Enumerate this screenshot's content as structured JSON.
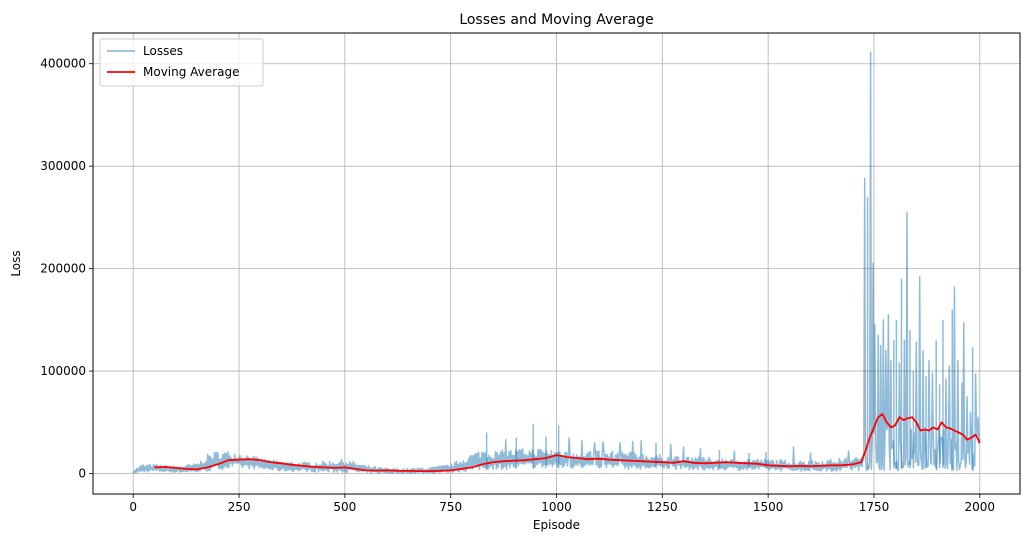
{
  "chart_data": {
    "type": "line",
    "title": "Losses and Moving Average",
    "xlabel": "Episode",
    "ylabel": "Loss",
    "xlim": [
      -95,
      2095
    ],
    "ylim": [
      -20000,
      430000
    ],
    "x_ticks": [
      0,
      250,
      500,
      750,
      1000,
      1250,
      1500,
      1750,
      2000
    ],
    "x_tick_labels": [
      "0",
      "250",
      "500",
      "750",
      "1000",
      "1250",
      "1500",
      "1750",
      "2000"
    ],
    "y_ticks": [
      0,
      100000,
      200000,
      300000,
      400000
    ],
    "y_tick_labels": [
      "0",
      "100000",
      "200000",
      "300000",
      "400000"
    ],
    "grid": true,
    "legend_position": "top-left",
    "series": [
      {
        "name": "Losses",
        "color": "#1f77b4",
        "alpha": 0.5,
        "envelope_x": [
          0,
          20,
          50,
          100,
          150,
          180,
          200,
          230,
          260,
          300,
          350,
          400,
          450,
          500,
          550,
          600,
          650,
          700,
          750,
          800,
          830,
          850,
          900,
          950,
          1000,
          1050,
          1100,
          1150,
          1200,
          1250,
          1300,
          1350,
          1400,
          1450,
          1500,
          1550,
          1600,
          1650,
          1700,
          1725
        ],
        "envelope_hi": [
          3000,
          9000,
          9000,
          7000,
          10000,
          20000,
          22000,
          22000,
          20000,
          15000,
          12000,
          11000,
          12000,
          14000,
          8000,
          5000,
          5000,
          6000,
          9000,
          20000,
          25000,
          22000,
          24000,
          25000,
          24000,
          23000,
          22000,
          22000,
          20000,
          18000,
          17000,
          16000,
          15000,
          15000,
          14000,
          13000,
          13000,
          14000,
          16000,
          18000
        ],
        "envelope_lo": [
          0,
          1000,
          2000,
          1000,
          1000,
          2000,
          3000,
          5000,
          5000,
          4000,
          2000,
          2000,
          1000,
          1000,
          0,
          0,
          0,
          0,
          1000,
          2000,
          3000,
          4000,
          4000,
          5000,
          5000,
          5000,
          5000,
          4000,
          4000,
          4000,
          4000,
          3000,
          3000,
          3000,
          3000,
          2000,
          2000,
          2000,
          3000,
          3000
        ],
        "spikes": [
          [
            835,
            40000
          ],
          [
            880,
            33000
          ],
          [
            905,
            35000
          ],
          [
            945,
            48000
          ],
          [
            975,
            36000
          ],
          [
            1005,
            47000
          ],
          [
            1030,
            35000
          ],
          [
            1060,
            32000
          ],
          [
            1090,
            30000
          ],
          [
            1110,
            31000
          ],
          [
            1150,
            30000
          ],
          [
            1180,
            31000
          ],
          [
            1200,
            32000
          ],
          [
            1235,
            30000
          ],
          [
            1270,
            28000
          ],
          [
            1300,
            26000
          ],
          [
            1340,
            24000
          ],
          [
            1385,
            23000
          ],
          [
            1420,
            22000
          ],
          [
            1455,
            20000
          ],
          [
            1495,
            21000
          ],
          [
            1560,
            26000
          ],
          [
            1600,
            20000
          ],
          [
            1690,
            22000
          ],
          [
            1728,
            288000
          ],
          [
            1735,
            270000
          ],
          [
            1742,
            411000
          ],
          [
            1748,
            205000
          ],
          [
            1752,
            145000
          ],
          [
            1760,
            135000
          ],
          [
            1766,
            125000
          ],
          [
            1772,
            150000
          ],
          [
            1778,
            120000
          ],
          [
            1784,
            155000
          ],
          [
            1790,
            110000
          ],
          [
            1797,
            130000
          ],
          [
            1803,
            150000
          ],
          [
            1810,
            108000
          ],
          [
            1815,
            190000
          ],
          [
            1822,
            130000
          ],
          [
            1828,
            255000
          ],
          [
            1835,
            140000
          ],
          [
            1843,
            100000
          ],
          [
            1850,
            128000
          ],
          [
            1858,
            192000
          ],
          [
            1866,
            120000
          ],
          [
            1873,
            95000
          ],
          [
            1880,
            110000
          ],
          [
            1888,
            98000
          ],
          [
            1897,
            130000
          ],
          [
            1905,
            87000
          ],
          [
            1913,
            150000
          ],
          [
            1920,
            92000
          ],
          [
            1928,
            105000
          ],
          [
            1935,
            160000
          ],
          [
            1940,
            182000
          ],
          [
            1948,
            110000
          ],
          [
            1958,
            88000
          ],
          [
            1962,
            147000
          ],
          [
            1970,
            75000
          ],
          [
            1978,
            60000
          ],
          [
            1983,
            123000
          ],
          [
            1990,
            97000
          ],
          [
            1996,
            55000
          ]
        ]
      },
      {
        "name": "Moving Average",
        "color": "#ff0000",
        "x": [
          50,
          75,
          100,
          125,
          150,
          175,
          200,
          225,
          250,
          275,
          300,
          325,
          350,
          375,
          400,
          425,
          450,
          475,
          500,
          525,
          550,
          575,
          600,
          625,
          650,
          675,
          700,
          725,
          750,
          775,
          800,
          825,
          850,
          875,
          900,
          925,
          950,
          975,
          1000,
          1015,
          1025,
          1050,
          1075,
          1100,
          1125,
          1150,
          1175,
          1200,
          1225,
          1250,
          1275,
          1300,
          1325,
          1350,
          1375,
          1400,
          1425,
          1450,
          1475,
          1500,
          1525,
          1550,
          1575,
          1600,
          1625,
          1650,
          1675,
          1700,
          1720,
          1730,
          1740,
          1750,
          1760,
          1770,
          1780,
          1790,
          1800,
          1810,
          1820,
          1830,
          1840,
          1850,
          1860,
          1870,
          1880,
          1890,
          1900,
          1910,
          1920,
          1930,
          1940,
          1950,
          1960,
          1970,
          1980,
          1990,
          2000
        ],
        "y": [
          6000,
          6500,
          5500,
          4500,
          4000,
          6000,
          9000,
          13000,
          13500,
          14000,
          13000,
          11000,
          10000,
          8500,
          7500,
          6500,
          6000,
          5500,
          6000,
          4500,
          3000,
          2800,
          3000,
          2600,
          2500,
          2400,
          2400,
          2600,
          3000,
          4500,
          6000,
          9000,
          11000,
          12000,
          12500,
          13000,
          14000,
          15000,
          18000,
          17000,
          16000,
          15000,
          14000,
          14500,
          13500,
          13000,
          12500,
          12000,
          11500,
          11000,
          10500,
          12000,
          10500,
          10000,
          10500,
          11000,
          10500,
          10000,
          9500,
          8000,
          7500,
          7000,
          7500,
          7000,
          7500,
          8000,
          8000,
          9000,
          11000,
          22000,
          35000,
          45000,
          55000,
          58000,
          50000,
          45000,
          47000,
          55000,
          52000,
          54000,
          55000,
          50000,
          42000,
          43000,
          42000,
          45000,
          43000,
          50000,
          45000,
          44000,
          42000,
          40000,
          38000,
          33000,
          35000,
          38000,
          30000
        ]
      }
    ]
  }
}
